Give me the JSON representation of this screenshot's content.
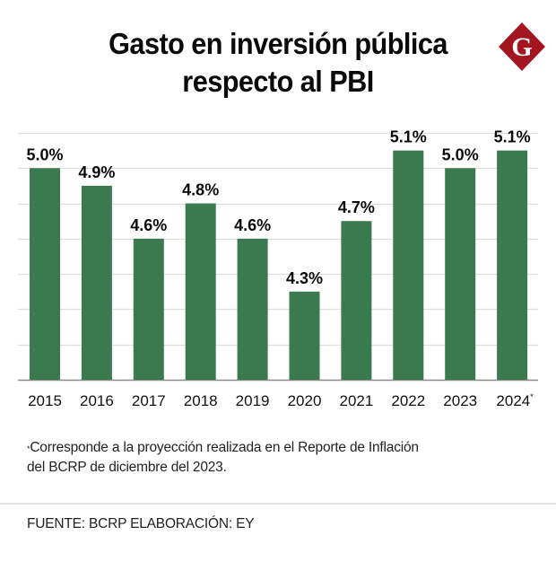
{
  "header": {
    "title_line1": "Gasto en inversión pública",
    "title_line2": "respecto al PBI",
    "logo": {
      "icon": "g-diamond-logo-icon",
      "letter": "G",
      "color": "#a3161f"
    }
  },
  "chart_data": {
    "type": "bar",
    "title": "Gasto en inversión pública respecto al PBI",
    "xlabel": "",
    "ylabel": "",
    "categories": [
      "2015",
      "2016",
      "2017",
      "2018",
      "2019",
      "2020",
      "2021",
      "2022",
      "2023",
      "2024"
    ],
    "category_markers": [
      "",
      "",
      "",
      "",
      "",
      "",
      "",
      "",
      "",
      "*"
    ],
    "values": [
      5.0,
      4.9,
      4.6,
      4.8,
      4.6,
      4.3,
      4.7,
      5.1,
      5.0,
      5.1
    ],
    "value_labels": [
      "5.0%",
      "4.9%",
      "4.6%",
      "4.8%",
      "4.6%",
      "4.3%",
      "4.7%",
      "5.1%",
      "5.0%",
      "5.1%"
    ],
    "unit": "%",
    "ylim": [
      3.8,
      5.2
    ],
    "y_grid_step": 0.2,
    "grid": true,
    "y_tick_labels_shown": false,
    "legend": "none",
    "bar_color": "#3b7a4f"
  },
  "footnote": {
    "marker": "*",
    "line1": "Corresponde a la proyección realizada en el Reporte de Inflación",
    "line2": "del BCRP de diciembre del 2023."
  },
  "source": {
    "text": "FUENTE: BCRP ELABORACIÓN: EY"
  }
}
